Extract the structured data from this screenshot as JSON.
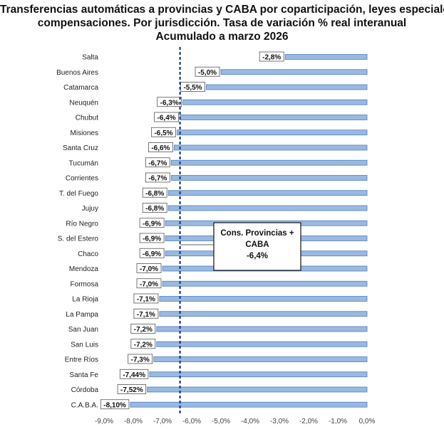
{
  "title": {
    "line1": "Transferencias automáticas a provincias y CABA por coparticipación, leyes especiales y",
    "line2": "compensaciones. Por jurisdicción. Tasa de variación % real interanual",
    "line3": "Acumulado a marzo 2026"
  },
  "chart_data": {
    "type": "bar",
    "orientation": "horizontal",
    "categories": [
      "Salta",
      "Buenos Aires",
      "Catamarca",
      "Neuquén",
      "Chubut",
      "Misiones",
      "Santa Cruz",
      "Tucumán",
      "Corrientes",
      "T. del Fuego",
      "Jujuy",
      "Río Negro",
      "S. del Estero",
      "Chaco",
      "Mendoza",
      "Formosa",
      "La Rioja",
      "La Pampa",
      "San Juan",
      "San Luis",
      "Entre Ríos",
      "Santa Fe",
      "Córdoba",
      "C.A.B.A."
    ],
    "values": [
      -2.8,
      -5.0,
      -5.5,
      -6.3,
      -6.4,
      -6.5,
      -6.6,
      -6.7,
      -6.7,
      -6.8,
      -6.8,
      -6.9,
      -6.9,
      -6.9,
      -7.0,
      -7.0,
      -7.1,
      -7.1,
      -7.2,
      -7.2,
      -7.3,
      -7.44,
      -7.52,
      -8.1
    ],
    "data_labels": [
      "-2,8%",
      "-5,0%",
      "-5,5%",
      "-6,3%",
      "-6,4%",
      "-6,5%",
      "-6,6%",
      "-6,7%",
      "-6,7%",
      "-6,8%",
      "-6,8%",
      "-6,9%",
      "-6,9%",
      "-6,9%",
      "-7,0%",
      "-7,0%",
      "-7,1%",
      "-7,1%",
      "-7,2%",
      "-7,2%",
      "-7,3%",
      "-7,44%",
      "-7,52%",
      "-8,10%"
    ],
    "xlim": [
      -9.0,
      0.0
    ],
    "tick_values": [
      -9,
      -8,
      -7,
      -6,
      -5,
      -4,
      -3,
      -2,
      -1,
      0
    ],
    "tick_labels": [
      "-9,0%",
      "-8,0%",
      "-7,0%",
      "-6,0%",
      "-5,0%",
      "-4,0%",
      "-3,0%",
      "-2,0%",
      "-1,0%",
      "0,0%"
    ],
    "reference_line": {
      "value": -6.4,
      "style": "dashed"
    },
    "annotation": {
      "line1": "Cons. Provincias +",
      "line2": "CABA",
      "line3": "-6,4%"
    },
    "grid": false,
    "bar_color": "#9ab9e0",
    "bar_edge_color": "#4f7fbf",
    "reference_color": "#1f3a7a"
  }
}
